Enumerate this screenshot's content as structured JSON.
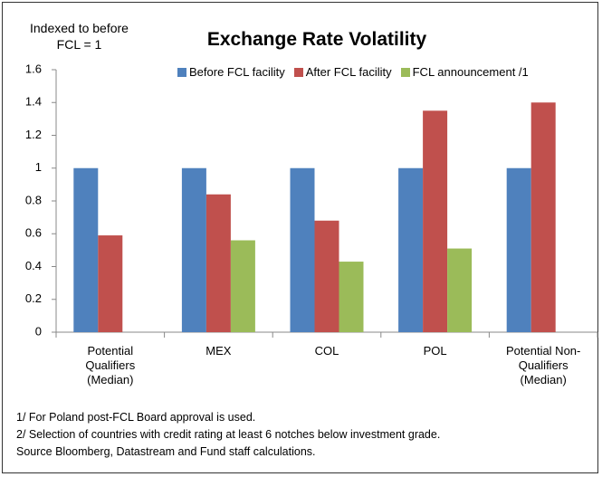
{
  "chart_data": {
    "type": "bar",
    "title": "Exchange Rate Volatility",
    "y_label": "Indexed to before FCL = 1",
    "categories": [
      "Potential Qualifiers (Median)",
      "MEX",
      "COL",
      "POL",
      "Potential Non-Qualifiers (Median)"
    ],
    "series": [
      {
        "name": "Before FCL facility",
        "color": "#4f81bd",
        "values": [
          1,
          1,
          1,
          1,
          1
        ]
      },
      {
        "name": "After FCL facility",
        "color": "#c0504d",
        "values": [
          0.59,
          0.84,
          0.68,
          1.35,
          1.4
        ]
      },
      {
        "name": "FCL announcement /1",
        "color": "#9bbb59",
        "values": [
          null,
          0.56,
          0.43,
          0.51,
          null
        ]
      }
    ],
    "ylim": [
      0,
      1.6
    ],
    "yticks": [
      0,
      0.2,
      0.4,
      0.6,
      0.8,
      1,
      1.2,
      1.4,
      1.6
    ],
    "grid": false,
    "legend": "top",
    "notes": [
      "1/ For Poland post-FCL Board approval is used.",
      "2/  Selection of countries with credit rating at least 6 notches below investment grade.",
      "Source Bloomberg, Datastream and Fund staff calculations."
    ]
  }
}
